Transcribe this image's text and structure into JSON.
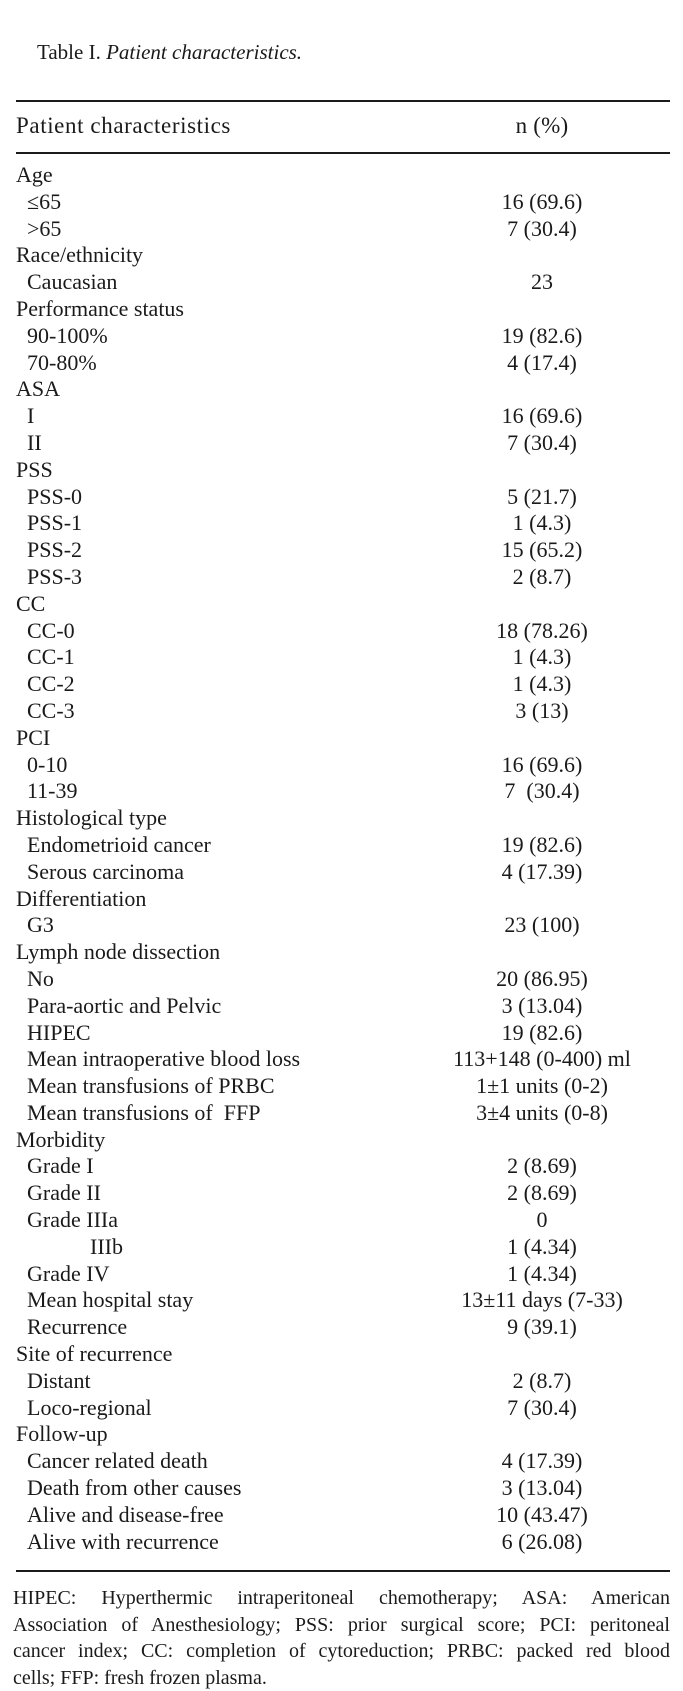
{
  "caption": {
    "label": "Table I. ",
    "title": "Patient characteristics."
  },
  "header": {
    "col1": "Patient characteristics",
    "col2": "n (%)"
  },
  "rows": [
    {
      "label": "Age",
      "value": "",
      "indent": 0
    },
    {
      "label": "≤65",
      "value": "16 (69.6)",
      "indent": 1
    },
    {
      "label": ">65",
      "value": "7 (30.4)",
      "indent": 1
    },
    {
      "label": "Race/ethnicity",
      "value": "",
      "indent": 0
    },
    {
      "label": "Caucasian",
      "value": "23",
      "indent": 1
    },
    {
      "label": "Performance status",
      "value": "",
      "indent": 0
    },
    {
      "label": "90-100%",
      "value": "19 (82.6)",
      "indent": 1
    },
    {
      "label": "70-80%",
      "value": "4 (17.4)",
      "indent": 1
    },
    {
      "label": "ASA",
      "value": "",
      "indent": 0
    },
    {
      "label": "I",
      "value": "16 (69.6)",
      "indent": 1
    },
    {
      "label": "II",
      "value": "7 (30.4)",
      "indent": 1
    },
    {
      "label": "PSS",
      "value": "",
      "indent": 0
    },
    {
      "label": "PSS-0",
      "value": "5 (21.7)",
      "indent": 1
    },
    {
      "label": "PSS-1",
      "value": "1 (4.3)",
      "indent": 1
    },
    {
      "label": "PSS-2",
      "value": "15 (65.2)",
      "indent": 1
    },
    {
      "label": "PSS-3",
      "value": "2 (8.7)",
      "indent": 1
    },
    {
      "label": "CC",
      "value": "",
      "indent": 0
    },
    {
      "label": "CC-0",
      "value": "18 (78.26)",
      "indent": 1
    },
    {
      "label": "CC-1",
      "value": "1 (4.3)",
      "indent": 1
    },
    {
      "label": "CC-2",
      "value": "1 (4.3)",
      "indent": 1
    },
    {
      "label": "CC-3",
      "value": "3 (13)",
      "indent": 1
    },
    {
      "label": "PCI",
      "value": "",
      "indent": 0
    },
    {
      "label": "0-10",
      "value": "16 (69.6)",
      "indent": 1
    },
    {
      "label": "11-39",
      "value": "7  (30.4)",
      "indent": 1
    },
    {
      "label": "Histological type",
      "value": "",
      "indent": 0
    },
    {
      "label": "Endometrioid cancer",
      "value": "19 (82.6)",
      "indent": 1
    },
    {
      "label": "Serous carcinoma",
      "value": "4 (17.39)",
      "indent": 1
    },
    {
      "label": "Differentiation",
      "value": "",
      "indent": 0
    },
    {
      "label": "G3",
      "value": "23 (100)",
      "indent": 1
    },
    {
      "label": "Lymph node dissection",
      "value": "",
      "indent": 0
    },
    {
      "label": "No",
      "value": "20 (86.95)",
      "indent": 1
    },
    {
      "label": "Para-aortic and Pelvic",
      "value": "3 (13.04)",
      "indent": 1
    },
    {
      "label": "HIPEC",
      "value": "19 (82.6)",
      "indent": 1
    },
    {
      "label": "Mean intraoperative blood loss",
      "value": "113+148 (0-400) ml",
      "indent": 1
    },
    {
      "label": "Mean transfusions of PRBC",
      "value": "1±1 units (0-2)",
      "indent": 1
    },
    {
      "label": "Mean transfusions of  FFP",
      "value": "3±4 units (0-8)",
      "indent": 1
    },
    {
      "label": "Morbidity",
      "value": "",
      "indent": 0
    },
    {
      "label": "Grade I",
      "value": "2 (8.69)",
      "indent": 1
    },
    {
      "label": "Grade II",
      "value": "2 (8.69)",
      "indent": 1
    },
    {
      "label": "Grade IIIa",
      "value": "0",
      "indent": 1
    },
    {
      "label": "IIIb",
      "value": "1 (4.34)",
      "indent": 2
    },
    {
      "label": "Grade IV",
      "value": "1 (4.34)",
      "indent": 1
    },
    {
      "label": "Mean hospital stay",
      "value": "13±11 days (7-33)",
      "indent": 1
    },
    {
      "label": "Recurrence",
      "value": "9 (39.1)",
      "indent": 1
    },
    {
      "label": "Site of recurrence",
      "value": "",
      "indent": 0
    },
    {
      "label": "Distant",
      "value": "2 (8.7)",
      "indent": 1
    },
    {
      "label": "Loco-regional",
      "value": "7 (30.4)",
      "indent": 1
    },
    {
      "label": "Follow-up",
      "value": "",
      "indent": 0
    },
    {
      "label": "Cancer related death",
      "value": "4 (17.39)",
      "indent": 1
    },
    {
      "label": "Death from other causes",
      "value": "3 (13.04)",
      "indent": 1
    },
    {
      "label": "Alive and disease-free",
      "value": "10 (43.47)",
      "indent": 1
    },
    {
      "label": "Alive with recurrence",
      "value": "6 (26.08)",
      "indent": 1
    }
  ],
  "footnote": {
    "lines": [
      "HIPEC: Hyperthermic intraperitoneal chemotherapy; ASA: American",
      "Association of Anesthesiology; PSS: prior surgical score; PCI: peritoneal",
      "cancer index; CC: completion of cytoreduction; PRBC: packed red blood",
      "cells; FFP: fresh frozen plasma."
    ],
    "full_text": "HIPEC: Hyperthermic intraperitoneal chemotherapy; ASA: American Association of Anesthesiology; PSS: prior surgical score; PCI: peritoneal cancer index; CC: completion of cytoreduction; PRBC: packed red blood cells; FFP: fresh frozen plasma."
  },
  "colors": {
    "text": "#1a1a1a",
    "rule": "#1b1b1b",
    "background": "#ffffff"
  }
}
